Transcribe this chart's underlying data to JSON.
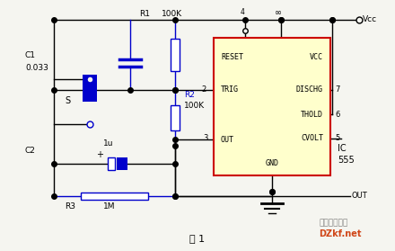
{
  "bg_color": "#f5f5f0",
  "ic_fill": "#ffffcc",
  "ic_border": "#cc0000",
  "wire_color": "#000000",
  "comp_color": "#0000cc",
  "text_color": "#000000",
  "title": "图 1",
  "watermark1": "电子开发社区",
  "watermark2": "DZkf.net"
}
